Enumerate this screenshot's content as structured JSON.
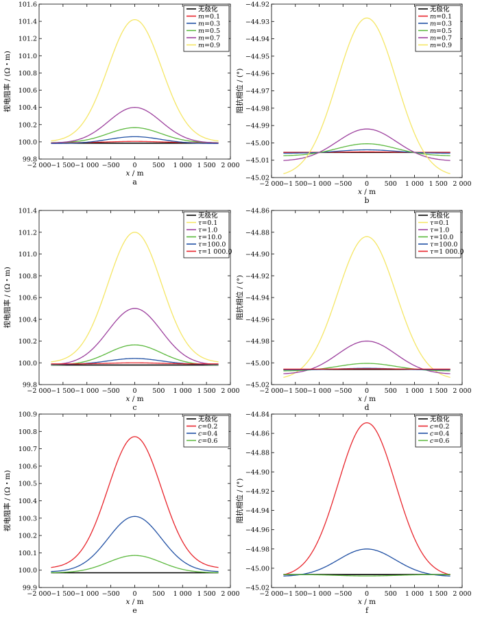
{
  "colors": {
    "none": "#000000",
    "red": "#e8232a",
    "blue": "#1f4fa3",
    "green": "#5ab83c",
    "purple": "#9b3d9c",
    "yellow": "#f5e663"
  },
  "chart_data": [
    {
      "id": "a",
      "type": "line",
      "caption": "a",
      "xlabel_var": "x",
      "xlabel_unit": " / m",
      "ylabel": "视电阻率 / (Ω・m)",
      "xlim": [
        -2000,
        2000
      ],
      "xticks": [
        -2000,
        -1500,
        -1000,
        -500,
        0,
        500,
        1000,
        1500,
        2000
      ],
      "xtick_labels": [
        "−2 000",
        "−1 500",
        "−1 000",
        "−500",
        "0",
        "500",
        "1 000",
        "1 500",
        "2 000"
      ],
      "ylim": [
        99.8,
        101.6
      ],
      "yticks": [
        99.8,
        100.0,
        100.2,
        100.4,
        100.6,
        100.8,
        101.0,
        101.2,
        101.4,
        101.6
      ],
      "ytick_labels": [
        "99.8",
        "100.0",
        "100.2",
        "100.4",
        "100.6",
        "100.8",
        "101.0",
        "101.2",
        "101.4",
        "101.6"
      ],
      "legend_position": "top-right",
      "series": [
        {
          "name": "无极化",
          "var": "",
          "eq": "",
          "color": "none",
          "base": 99.985,
          "peak": 99.985,
          "width": 550
        },
        {
          "name": "m=0.1",
          "var": "m",
          "eq": "=0.1",
          "color": "red",
          "base": 99.99,
          "peak": 100.005,
          "width": 550
        },
        {
          "name": "m=0.3",
          "var": "m",
          "eq": "=0.3",
          "color": "blue",
          "base": 99.98,
          "peak": 100.06,
          "width": 550
        },
        {
          "name": "m=0.5",
          "var": "m",
          "eq": "=0.5",
          "color": "green",
          "base": 99.99,
          "peak": 100.165,
          "width": 550
        },
        {
          "name": "m=0.7",
          "var": "m",
          "eq": "=0.7",
          "color": "purple",
          "base": 99.985,
          "peak": 100.4,
          "width": 550
        },
        {
          "name": "m=0.9",
          "var": "m",
          "eq": "=0.9",
          "color": "yellow",
          "base": 100.0,
          "peak": 101.42,
          "width": 560
        }
      ]
    },
    {
      "id": "b",
      "type": "line",
      "caption": "b",
      "xlabel_var": "x",
      "xlabel_unit": " / m",
      "ylabel": "阻抗相位 / (°)",
      "xlim": [
        -2000,
        2000
      ],
      "xticks": [
        -2000,
        -1500,
        -1000,
        -500,
        0,
        500,
        1000,
        1500,
        2000
      ],
      "xtick_labels": [
        "−2 000",
        "−1 500",
        "−1 000",
        "−500",
        "0",
        "500",
        "1 000",
        "1 500",
        "2 000"
      ],
      "ylim": [
        -45.02,
        -44.92
      ],
      "yticks": [
        -45.02,
        -45.01,
        -45.0,
        -44.99,
        -44.98,
        -44.97,
        -44.96,
        -44.95,
        -44.94,
        -44.93,
        -44.92
      ],
      "ytick_labels": [
        "−45.02",
        "−45.01",
        "−45.00",
        "−44.99",
        "−44.98",
        "−44.97",
        "−44.96",
        "−44.95",
        "−44.94",
        "−44.93",
        "−44.92"
      ],
      "legend_position": "top-right",
      "series": [
        {
          "name": "无极化",
          "var": "",
          "eq": "",
          "color": "none",
          "base": -45.0055,
          "peak": -45.0055,
          "width": 600
        },
        {
          "name": "m=0.1",
          "var": "m",
          "eq": "=0.1",
          "color": "red",
          "base": -45.0055,
          "peak": -45.0052,
          "width": 600
        },
        {
          "name": "m=0.3",
          "var": "m",
          "eq": "=0.3",
          "color": "blue",
          "base": -45.006,
          "peak": -45.004,
          "width": 600
        },
        {
          "name": "m=0.5",
          "var": "m",
          "eq": "=0.5",
          "color": "green",
          "base": -45.0075,
          "peak": -45.0005,
          "width": 620
        },
        {
          "name": "m=0.7",
          "var": "m",
          "eq": "=0.7",
          "color": "purple",
          "base": -45.0105,
          "peak": -44.992,
          "width": 620
        },
        {
          "name": "m=0.9",
          "var": "m",
          "eq": "=0.9",
          "color": "yellow",
          "base": -45.0195,
          "peak": -44.928,
          "width": 620
        }
      ]
    },
    {
      "id": "c",
      "type": "line",
      "caption": "c",
      "xlabel_var": "x",
      "xlabel_unit": " / m",
      "ylabel": "视电阻率 / (Ω・m)",
      "xlim": [
        -2000,
        2000
      ],
      "xticks": [
        -2000,
        -1500,
        -1000,
        -500,
        0,
        500,
        1000,
        1500,
        2000
      ],
      "xtick_labels": [
        "−2 000",
        "−1 500",
        "−1 000",
        "−500",
        "0",
        "500",
        "1 000",
        "1 500",
        "2 000"
      ],
      "ylim": [
        99.8,
        101.4
      ],
      "yticks": [
        99.8,
        100.0,
        100.2,
        100.4,
        100.6,
        100.8,
        101.0,
        101.2,
        101.4
      ],
      "ytick_labels": [
        "99.8",
        "100.0",
        "100.2",
        "100.4",
        "100.6",
        "100.8",
        "101.0",
        "101.2",
        "101.4"
      ],
      "legend_position": "top-right",
      "series": [
        {
          "name": "无极化",
          "var": "",
          "eq": "",
          "color": "none",
          "base": 99.98,
          "peak": 99.98,
          "width": 550
        },
        {
          "name": "τ=0.1",
          "var": "τ",
          "eq": "=0.1",
          "color": "yellow",
          "base": 100.0,
          "peak": 101.2,
          "width": 560
        },
        {
          "name": "τ=1.0",
          "var": "τ",
          "eq": "=1.0",
          "color": "purple",
          "base": 99.98,
          "peak": 100.5,
          "width": 555
        },
        {
          "name": "τ=10.0",
          "var": "τ",
          "eq": "=10.0",
          "color": "green",
          "base": 99.98,
          "peak": 100.165,
          "width": 555
        },
        {
          "name": "τ=100.0",
          "var": "τ",
          "eq": "=100.0",
          "color": "blue",
          "base": 99.985,
          "peak": 100.04,
          "width": 550
        },
        {
          "name": "τ=1 000.0",
          "var": "τ",
          "eq": "=1 000.0",
          "color": "red",
          "base": 99.99,
          "peak": 100.0,
          "width": 550
        }
      ]
    },
    {
      "id": "d",
      "type": "line",
      "caption": "d",
      "xlabel_var": "x",
      "xlabel_unit": " / m",
      "ylabel": "阻抗相位 / (°)",
      "xlim": [
        -2000,
        2000
      ],
      "xticks": [
        -2000,
        -1500,
        -1000,
        -500,
        0,
        500,
        1000,
        1500,
        2000
      ],
      "xtick_labels": [
        "−2 000",
        "−1 500",
        "−1 000",
        "−500",
        "0",
        "500",
        "1 000",
        "1 500",
        "2 000"
      ],
      "ylim": [
        -45.02,
        -44.86
      ],
      "yticks": [
        -45.02,
        -45.0,
        -44.98,
        -44.96,
        -44.94,
        -44.92,
        -44.9,
        -44.88,
        -44.86
      ],
      "ytick_labels": [
        "−45.02",
        "−45.00",
        "−44.98",
        "−44.96",
        "−44.94",
        "−44.92",
        "−44.90",
        "−44.88",
        "−44.86"
      ],
      "legend_position": "top-right",
      "series": [
        {
          "name": "无极化",
          "var": "",
          "eq": "",
          "color": "none",
          "base": -45.006,
          "peak": -45.006,
          "width": 600
        },
        {
          "name": "τ=0.1",
          "var": "τ",
          "eq": "=0.1",
          "color": "yellow",
          "base": -45.0155,
          "peak": -44.884,
          "width": 610
        },
        {
          "name": "τ=1.0",
          "var": "τ",
          "eq": "=1.0",
          "color": "purple",
          "base": -45.0105,
          "peak": -44.98,
          "width": 610
        },
        {
          "name": "τ=10.0",
          "var": "τ",
          "eq": "=10.0",
          "color": "green",
          "base": -45.0075,
          "peak": -45.0005,
          "width": 610
        },
        {
          "name": "τ=100.0",
          "var": "τ",
          "eq": "=100.0",
          "color": "blue",
          "base": -45.0065,
          "peak": -45.005,
          "width": 600
        },
        {
          "name": "τ=1 000.0",
          "var": "τ",
          "eq": "=1 000.0",
          "color": "red",
          "base": -45.0058,
          "peak": -45.0055,
          "width": 600
        }
      ]
    },
    {
      "id": "e",
      "type": "line",
      "caption": "e",
      "xlabel_var": "x",
      "xlabel_unit": " / m",
      "ylabel": "视电阻率 / (Ω・m)",
      "xlim": [
        -2000,
        2000
      ],
      "xticks": [
        -2000,
        -1500,
        -1000,
        -500,
        0,
        500,
        1000,
        1500,
        2000
      ],
      "xtick_labels": [
        "−2 000",
        "−1 500",
        "−1 000",
        "−500",
        "0",
        "500",
        "1 000",
        "1 500",
        "2 000"
      ],
      "ylim": [
        99.9,
        100.9
      ],
      "yticks": [
        99.9,
        100.0,
        100.1,
        100.2,
        100.3,
        100.4,
        100.5,
        100.6,
        100.7,
        100.8,
        100.9
      ],
      "ytick_labels": [
        "99.9",
        "100.0",
        "100.1",
        "100.2",
        "100.3",
        "100.4",
        "100.5",
        "100.6",
        "100.7",
        "100.8",
        "100.9"
      ],
      "legend_position": "top-right",
      "series": [
        {
          "name": "无极化",
          "var": "",
          "eq": "",
          "color": "none",
          "base": 99.985,
          "peak": 99.985,
          "width": 550
        },
        {
          "name": "c=0.2",
          "var": "c",
          "eq": "=0.2",
          "color": "red",
          "base": 100.01,
          "peak": 100.77,
          "width": 560
        },
        {
          "name": "c=0.4",
          "var": "c",
          "eq": "=0.4",
          "color": "blue",
          "base": 99.99,
          "peak": 100.31,
          "width": 555
        },
        {
          "name": "c=0.6",
          "var": "c",
          "eq": "=0.6",
          "color": "green",
          "base": 99.985,
          "peak": 100.085,
          "width": 555
        }
      ]
    },
    {
      "id": "f",
      "type": "line",
      "caption": "f",
      "xlabel_var": "x",
      "xlabel_unit": " / m",
      "ylabel": "阻抗相位 / (°)",
      "xlim": [
        -2000,
        2000
      ],
      "xticks": [
        -2000,
        -1500,
        -1000,
        -500,
        0,
        500,
        1000,
        1500,
        2000
      ],
      "xtick_labels": [
        "−2 000",
        "−1 500",
        "−1 000",
        "−500",
        "0",
        "500",
        "1 000",
        "1 500",
        "2 000"
      ],
      "ylim": [
        -45.02,
        -44.84
      ],
      "yticks": [
        -45.02,
        -45.0,
        -44.98,
        -44.96,
        -44.94,
        -44.92,
        -44.9,
        -44.88,
        -44.86,
        -44.84
      ],
      "ytick_labels": [
        "−45.02",
        "−45.00",
        "−44.98",
        "−44.96",
        "−44.94",
        "−44.92",
        "−44.90",
        "−44.88",
        "−44.86",
        "−44.84"
      ],
      "legend_position": "top-right",
      "series": [
        {
          "name": "无极化",
          "var": "",
          "eq": "",
          "color": "none",
          "base": -45.0065,
          "peak": -45.0065,
          "width": 600
        },
        {
          "name": "c=0.2",
          "var": "c",
          "eq": "=0.2",
          "color": "red",
          "base": -45.009,
          "peak": -44.849,
          "width": 600
        },
        {
          "name": "c=0.4",
          "var": "c",
          "eq": "=0.4",
          "color": "blue",
          "base": -45.0085,
          "peak": -44.98,
          "width": 600
        },
        {
          "name": "c=0.6",
          "var": "c",
          "eq": "=0.6",
          "color": "green",
          "base": -45.0065,
          "peak": -45.008,
          "width": 600
        }
      ]
    }
  ]
}
